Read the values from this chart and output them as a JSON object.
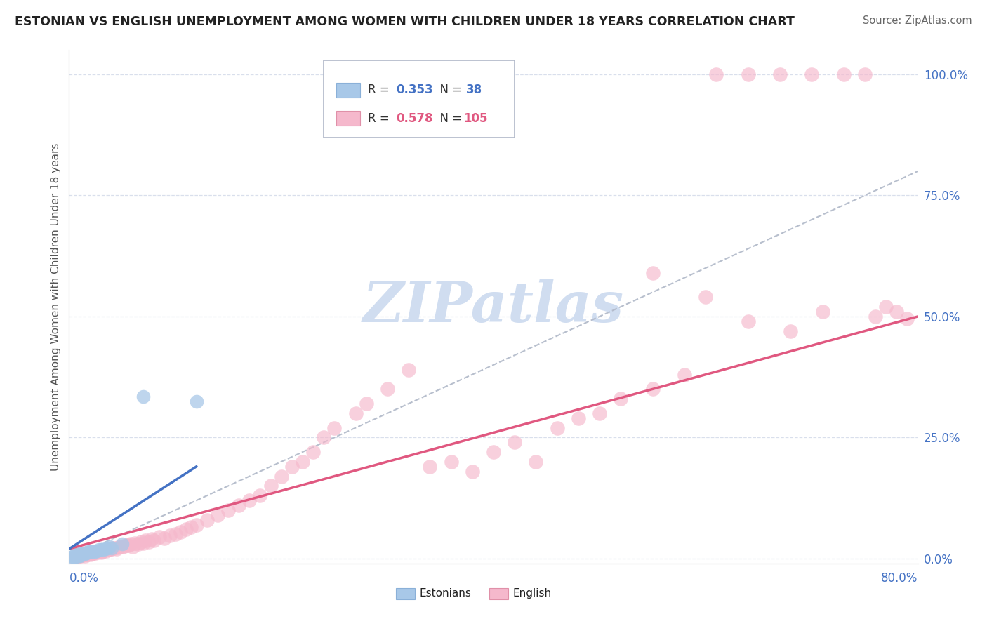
{
  "title": "ESTONIAN VS ENGLISH UNEMPLOYMENT AMONG WOMEN WITH CHILDREN UNDER 18 YEARS CORRELATION CHART",
  "source": "Source: ZipAtlas.com",
  "ylabel": "Unemployment Among Women with Children Under 18 years",
  "ytick_labels": [
    "0.0%",
    "25.0%",
    "50.0%",
    "75.0%",
    "100.0%"
  ],
  "ytick_values": [
    0.0,
    0.25,
    0.5,
    0.75,
    1.0
  ],
  "xlim": [
    0.0,
    0.8
  ],
  "ylim": [
    0.0,
    1.05
  ],
  "legend_estonians_r": "0.353",
  "legend_estonians_n": "38",
  "legend_english_r": "0.578",
  "legend_english_n": "105",
  "color_estonian": "#a8c8e8",
  "color_english": "#f5b8cc",
  "color_estonian_line": "#4472c4",
  "color_english_line": "#e05880",
  "color_diagonal": "#b0b8c8",
  "watermark_color": "#d0ddf0",
  "english_line_x0": 0.0,
  "english_line_y0": 0.02,
  "english_line_x1": 0.8,
  "english_line_y1": 0.5,
  "estonian_line_x0": 0.0,
  "estonian_line_y0": 0.02,
  "estonian_line_x1": 0.12,
  "estonian_line_y1": 0.19,
  "eng_scatter_x": [
    0.005,
    0.007,
    0.008,
    0.009,
    0.01,
    0.01,
    0.01,
    0.011,
    0.012,
    0.013,
    0.015,
    0.015,
    0.016,
    0.017,
    0.018,
    0.019,
    0.02,
    0.02,
    0.021,
    0.022,
    0.023,
    0.024,
    0.025,
    0.026,
    0.027,
    0.028,
    0.03,
    0.031,
    0.032,
    0.033,
    0.035,
    0.036,
    0.038,
    0.04,
    0.04,
    0.042,
    0.045,
    0.046,
    0.048,
    0.05,
    0.052,
    0.054,
    0.056,
    0.058,
    0.06,
    0.062,
    0.065,
    0.068,
    0.07,
    0.072,
    0.075,
    0.078,
    0.08,
    0.085,
    0.09,
    0.095,
    0.1,
    0.105,
    0.11,
    0.115,
    0.12,
    0.13,
    0.14,
    0.15,
    0.16,
    0.17,
    0.18,
    0.19,
    0.2,
    0.21,
    0.22,
    0.23,
    0.24,
    0.25,
    0.27,
    0.28,
    0.3,
    0.32,
    0.34,
    0.36,
    0.38,
    0.4,
    0.42,
    0.44,
    0.46,
    0.48,
    0.5,
    0.52,
    0.55,
    0.58,
    0.61,
    0.64,
    0.67,
    0.7,
    0.73,
    0.75,
    0.76,
    0.77,
    0.78,
    0.79,
    0.55,
    0.6,
    0.64,
    0.68,
    0.71
  ],
  "eng_scatter_y": [
    0.003,
    0.005,
    0.005,
    0.006,
    0.005,
    0.007,
    0.008,
    0.006,
    0.007,
    0.008,
    0.006,
    0.009,
    0.008,
    0.009,
    0.01,
    0.01,
    0.008,
    0.012,
    0.01,
    0.011,
    0.012,
    0.013,
    0.012,
    0.014,
    0.015,
    0.014,
    0.013,
    0.015,
    0.016,
    0.017,
    0.016,
    0.018,
    0.018,
    0.02,
    0.022,
    0.021,
    0.02,
    0.023,
    0.025,
    0.024,
    0.026,
    0.028,
    0.027,
    0.03,
    0.025,
    0.032,
    0.03,
    0.035,
    0.032,
    0.038,
    0.035,
    0.04,
    0.038,
    0.045,
    0.042,
    0.048,
    0.05,
    0.055,
    0.06,
    0.065,
    0.07,
    0.08,
    0.09,
    0.1,
    0.11,
    0.12,
    0.13,
    0.15,
    0.17,
    0.19,
    0.2,
    0.22,
    0.25,
    0.27,
    0.3,
    0.32,
    0.35,
    0.39,
    0.19,
    0.2,
    0.18,
    0.22,
    0.24,
    0.2,
    0.27,
    0.29,
    0.3,
    0.33,
    0.35,
    0.38,
    1.0,
    1.0,
    1.0,
    1.0,
    1.0,
    1.0,
    0.5,
    0.52,
    0.51,
    0.495,
    0.59,
    0.54,
    0.49,
    0.47,
    0.51
  ],
  "est_scatter_x": [
    0.003,
    0.004,
    0.005,
    0.005,
    0.006,
    0.006,
    0.006,
    0.007,
    0.007,
    0.008,
    0.008,
    0.009,
    0.009,
    0.01,
    0.01,
    0.01,
    0.011,
    0.012,
    0.013,
    0.014,
    0.015,
    0.016,
    0.017,
    0.018,
    0.02,
    0.022,
    0.024,
    0.026,
    0.028,
    0.03,
    0.032,
    0.034,
    0.036,
    0.038,
    0.04,
    0.05,
    0.07,
    0.12
  ],
  "est_scatter_y": [
    0.003,
    0.004,
    0.003,
    0.005,
    0.004,
    0.006,
    0.008,
    0.005,
    0.007,
    0.005,
    0.008,
    0.006,
    0.009,
    0.005,
    0.007,
    0.01,
    0.008,
    0.01,
    0.01,
    0.012,
    0.01,
    0.012,
    0.013,
    0.015,
    0.014,
    0.014,
    0.015,
    0.016,
    0.018,
    0.018,
    0.019,
    0.02,
    0.022,
    0.024,
    0.022,
    0.03,
    0.335,
    0.325
  ]
}
